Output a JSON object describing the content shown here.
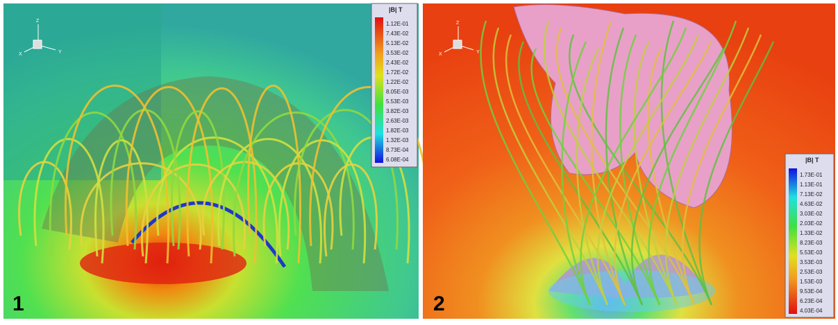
{
  "panels": [
    {
      "label": "1",
      "axes": [
        "Z",
        "X",
        "Y"
      ],
      "colorbar": {
        "title": "|B| T",
        "labels": [
          "1.12E-01",
          "7.43E-02",
          "5.13E-02",
          "3.53E-02",
          "2.43E-02",
          "1.72E-02",
          "1.22E-02",
          "8.05E-03",
          "5.53E-03",
          "3.82E-03",
          "2.63E-03",
          "1.82E-03",
          "1.32E-03",
          "8.73E-04",
          "6.08E-04"
        ]
      }
    },
    {
      "label": "2",
      "axes": [
        "Z",
        "X",
        "Y"
      ],
      "colorbar": {
        "title": "|B| T",
        "labels": [
          "1.73E-01",
          "1.13E-01",
          "7.13E-02",
          "4.63E-02",
          "3.03E-02",
          "2.03E-02",
          "1.33E-02",
          "8.23E-03",
          "5.53E-03",
          "3.53E-03",
          "2.53E-03",
          "1.53E-03",
          "9.53E-04",
          "6.23E-04",
          "4.03E-04"
        ]
      }
    }
  ]
}
